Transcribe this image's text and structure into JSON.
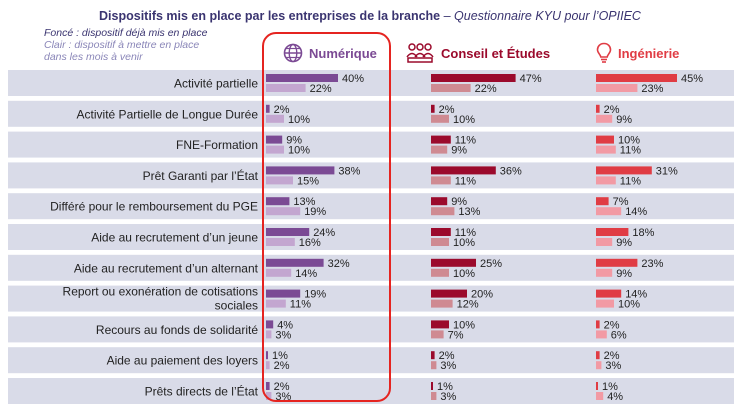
{
  "title": "Dispositifs mis en place par les entreprises de la branche",
  "subtitle": "– Questionnaire KYU pour l’OPIIEC",
  "legend": {
    "dark": "Foncé : dispositif déjà mis en place",
    "light_line1": "Clair : dispositif à mettre en place",
    "light_line2": "dans les mois à venir"
  },
  "colors": {
    "row_band": "#d9dbe8",
    "numerique_dark": "#7b4a94",
    "numerique_light": "#c3a6d0",
    "conseil_dark": "#9b0a2c",
    "conseil_light": "#cf8a92",
    "ingenierie_dark": "#e03c44",
    "ingenierie_light": "#f29aa4",
    "highlight_frame": "#e52420"
  },
  "chart_data": {
    "type": "bar",
    "orientation": "horizontal",
    "categories": [
      "Activité partielle",
      "Activité Partielle de Longue Durée",
      "FNE-Formation",
      "Prêt Garanti par l’État",
      "Différé pour le remboursement du PGE",
      "Aide au recrutement d’un jeune",
      "Aide au recrutement d’un alternant",
      "Report ou exonération de cotisations sociales",
      "Recours au fonds de solidarité",
      "Aide au paiement des loyers",
      "Prêts directs de l’État"
    ],
    "panels": [
      {
        "name": "Numérique",
        "icon": "globe-icon",
        "header_color": "#7b4a94",
        "series": [
          {
            "values": [
              40,
              2,
              9,
              38,
              13,
              24,
              32,
              19,
              4,
              1,
              2
            ]
          },
          {
            "values": [
              22,
              10,
              10,
              15,
              19,
              16,
              14,
              11,
              3,
              2,
              3
            ]
          }
        ]
      },
      {
        "name": "Conseil et Études",
        "icon": "people-icon",
        "header_color": "#9b0a2c",
        "series": [
          {
            "values": [
              47,
              2,
              11,
              36,
              9,
              11,
              25,
              20,
              10,
              2,
              1
            ]
          },
          {
            "values": [
              22,
              10,
              9,
              11,
              13,
              10,
              10,
              12,
              7,
              3,
              3
            ]
          }
        ]
      },
      {
        "name": "Ingénierie",
        "icon": "lightbulb-icon",
        "header_color": "#e03c44",
        "series": [
          {
            "values": [
              45,
              2,
              10,
              31,
              7,
              18,
              23,
              14,
              2,
              2,
              1
            ]
          },
          {
            "values": [
              23,
              9,
              11,
              11,
              14,
              9,
              9,
              10,
              6,
              3,
              4
            ]
          }
        ]
      }
    ],
    "value_suffix": "%",
    "xlim": [
      0,
      50
    ],
    "grid": false
  }
}
